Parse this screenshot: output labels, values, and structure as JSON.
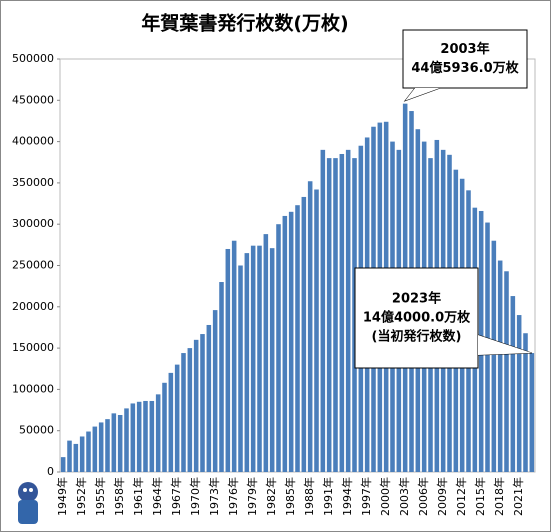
{
  "chart_data": {
    "type": "bar",
    "title": "年賀葉書発行枚数(万枚)",
    "categories": [
      "1949年",
      null,
      null,
      "1952年",
      null,
      null,
      "1955年",
      null,
      null,
      "1958年",
      null,
      null,
      "1961年",
      null,
      null,
      "1964年",
      null,
      null,
      "1967年",
      null,
      null,
      "1970年",
      null,
      null,
      "1973年",
      null,
      null,
      "1976年",
      null,
      null,
      "1979年",
      null,
      null,
      "1982年",
      null,
      null,
      "1985年",
      null,
      null,
      "1988年",
      null,
      null,
      "1991年",
      null,
      null,
      "1994年",
      null,
      null,
      "1997年",
      null,
      null,
      "2000年",
      null,
      null,
      "2003年",
      null,
      null,
      "2006年",
      null,
      null,
      "2009年",
      null,
      null,
      "2012年",
      null,
      null,
      "2015年",
      null,
      null,
      "2018年",
      null,
      null,
      "2021年",
      null,
      null
    ],
    "values": [
      18000,
      38000,
      34000,
      43000,
      49000,
      55000,
      60000,
      64000,
      71000,
      69000,
      77000,
      83000,
      85000,
      86000,
      86000,
      94000,
      108000,
      120000,
      130000,
      144000,
      150000,
      160000,
      167000,
      178000,
      196000,
      230000,
      270000,
      280000,
      250000,
      265000,
      274000,
      274000,
      288000,
      271000,
      300000,
      310000,
      315000,
      323000,
      333000,
      352000,
      342000,
      390000,
      380000,
      380000,
      385000,
      390000,
      380000,
      395000,
      405000,
      418000,
      423000,
      424000,
      400000,
      390000,
      445936,
      437000,
      415000,
      400000,
      380000,
      402000,
      390000,
      384000,
      366000,
      355000,
      341000,
      320000,
      316000,
      302000,
      280000,
      256000,
      243000,
      213000,
      190000,
      168000,
      144000
    ],
    "color": "#4a7ebb",
    "ylim": [
      0,
      500000
    ],
    "yticks": [
      0,
      50000,
      100000,
      150000,
      200000,
      250000,
      300000,
      350000,
      400000,
      450000,
      500000
    ],
    "grid": false,
    "annotations": [
      {
        "lines": [
          "2003年",
          "44億5936.0万枚"
        ]
      },
      {
        "lines": [
          "2023年",
          "14億4000.0万枚",
          "(当初発行枚数)"
        ]
      }
    ]
  }
}
